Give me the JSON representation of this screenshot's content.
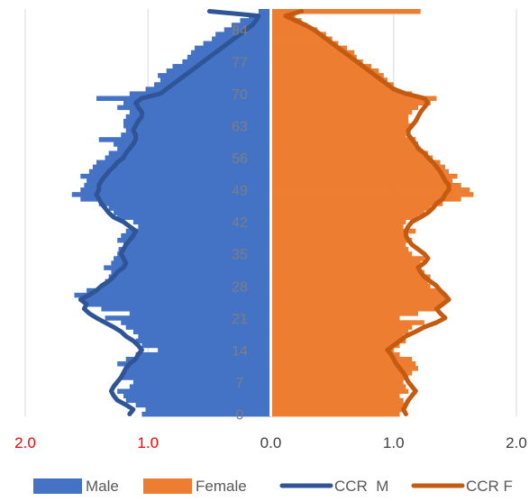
{
  "chart_data": {
    "type": "bar",
    "orientation": "horizontal",
    "subtype": "population-pyramid",
    "title": "",
    "xlabel": "",
    "ylabel": "",
    "xlim": [
      -2.0,
      2.0
    ],
    "x_tick_values": [
      -2.0,
      -1.0,
      0.0,
      1.0,
      2.0
    ],
    "x_tick_labels": [
      "2.0",
      "1.0",
      "0.0",
      "1.0",
      "2.0"
    ],
    "y_tick_labels": [
      "0",
      "7",
      "14",
      "21",
      "28",
      "35",
      "42",
      "49",
      "56",
      "63",
      "70",
      "77",
      "84"
    ],
    "grid": {
      "vertical": true,
      "horizontal": false
    },
    "legend_position": "bottom",
    "colors": {
      "male": "#4472C4",
      "female": "#ED7D31",
      "ccr_m": "#2F5597",
      "ccr_f": "#C55A11",
      "red_ticks": "#FF0000",
      "black_ticks": "#404040",
      "y_ticks": "#7F7F7F",
      "grid": "#D9D9D9"
    },
    "ages": [
      0,
      1,
      2,
      3,
      4,
      5,
      6,
      7,
      8,
      9,
      10,
      11,
      12,
      13,
      14,
      15,
      16,
      17,
      18,
      19,
      20,
      21,
      22,
      23,
      24,
      25,
      26,
      27,
      28,
      29,
      30,
      31,
      32,
      33,
      34,
      35,
      36,
      37,
      38,
      39,
      40,
      41,
      42,
      43,
      44,
      45,
      46,
      47,
      48,
      49,
      50,
      51,
      52,
      53,
      54,
      55,
      56,
      57,
      58,
      59,
      60,
      61,
      62,
      63,
      64,
      65,
      66,
      67,
      68,
      69,
      70,
      71,
      72,
      73,
      74,
      75,
      76,
      77,
      78,
      79,
      80,
      81,
      82,
      83,
      84,
      85,
      86,
      87,
      88
    ],
    "series": [
      {
        "name": "Male",
        "kind": "bar",
        "values": [
          1.05,
          1.02,
          1.1,
          1.18,
          1.2,
          1.25,
          1.15,
          1.12,
          1.22,
          1.2,
          1.18,
          1.25,
          1.18,
          1.1,
          0.92,
          1.05,
          1.1,
          1.08,
          1.12,
          1.18,
          1.22,
          1.35,
          1.15,
          1.38,
          1.5,
          1.55,
          1.6,
          1.5,
          1.38,
          1.35,
          1.32,
          1.3,
          1.36,
          1.3,
          1.28,
          1.25,
          1.24,
          1.2,
          1.25,
          1.22,
          1.18,
          1.08,
          1.12,
          1.25,
          1.28,
          1.32,
          1.4,
          1.55,
          1.62,
          1.55,
          1.52,
          1.5,
          1.55,
          1.48,
          1.45,
          1.42,
          1.35,
          1.32,
          1.25,
          1.28,
          1.4,
          1.22,
          1.18,
          1.2,
          1.2,
          1.18,
          1.15,
          1.25,
          1.2,
          1.42,
          1.15,
          1.02,
          0.95,
          0.9,
          0.92,
          0.85,
          0.8,
          0.72,
          0.68,
          0.65,
          0.62,
          0.55,
          0.48,
          0.45,
          0.38,
          0.32,
          0.25,
          0.18,
          0.1
        ]
      },
      {
        "name": "Female",
        "kind": "bar",
        "values": [
          1.05,
          1.08,
          1.1,
          1.08,
          1.05,
          1.12,
          1.1,
          1.08,
          1.12,
          1.15,
          1.2,
          1.18,
          1.15,
          1.05,
          1.0,
          1.05,
          1.1,
          1.08,
          1.12,
          1.15,
          1.25,
          1.05,
          1.2,
          1.35,
          1.4,
          1.45,
          1.42,
          1.38,
          1.3,
          1.28,
          1.3,
          1.25,
          1.2,
          1.22,
          1.25,
          1.15,
          1.12,
          1.1,
          1.15,
          1.12,
          1.18,
          1.08,
          1.1,
          1.2,
          1.25,
          1.3,
          1.4,
          1.55,
          1.65,
          1.62,
          1.55,
          1.48,
          1.52,
          1.45,
          1.42,
          1.38,
          1.32,
          1.28,
          1.22,
          1.2,
          1.18,
          1.1,
          1.12,
          1.15,
          1.12,
          1.12,
          1.15,
          1.2,
          1.3,
          1.35,
          1.15,
          1.02,
          1.0,
          0.95,
          0.92,
          0.88,
          0.82,
          0.75,
          0.7,
          0.68,
          0.62,
          0.55,
          0.5,
          0.45,
          0.38,
          0.3,
          0.25,
          0.2,
          1.22
        ]
      },
      {
        "name": "CCR  M",
        "kind": "line",
        "values": [
          1.15,
          1.12,
          1.18,
          1.25,
          1.28,
          1.3,
          1.28,
          1.25,
          1.22,
          1.2,
          1.18,
          1.15,
          1.1,
          1.08,
          1.05,
          1.08,
          1.12,
          1.18,
          1.22,
          1.28,
          1.35,
          1.42,
          1.48,
          1.52,
          1.5,
          1.55,
          1.48,
          1.42,
          1.38,
          1.32,
          1.28,
          1.25,
          1.2,
          1.18,
          1.2,
          1.22,
          1.2,
          1.18,
          1.15,
          1.12,
          1.1,
          1.15,
          1.2,
          1.28,
          1.32,
          1.35,
          1.38,
          1.4,
          1.42,
          1.4,
          1.4,
          1.38,
          1.35,
          1.32,
          1.28,
          1.25,
          1.2,
          1.18,
          1.15,
          1.12,
          1.1,
          1.1,
          1.12,
          1.1,
          1.08,
          1.05,
          1.05,
          1.08,
          1.1,
          1.05,
          0.9,
          0.85,
          0.8,
          0.75,
          0.7,
          0.65,
          0.6,
          0.55,
          0.5,
          0.45,
          0.4,
          0.35,
          0.3,
          0.25,
          0.2,
          0.15,
          0.12,
          0.1,
          0.5
        ]
      },
      {
        "name": "CCR F",
        "kind": "line",
        "values": [
          1.1,
          1.08,
          1.1,
          1.12,
          1.15,
          1.18,
          1.15,
          1.12,
          1.1,
          1.08,
          1.05,
          1.02,
          1.0,
          0.98,
          0.95,
          1.0,
          1.05,
          1.1,
          1.18,
          1.25,
          1.35,
          1.42,
          1.38,
          1.35,
          1.4,
          1.45,
          1.42,
          1.38,
          1.35,
          1.3,
          1.25,
          1.22,
          1.2,
          1.25,
          1.28,
          1.25,
          1.2,
          1.15,
          1.12,
          1.1,
          1.1,
          1.12,
          1.15,
          1.22,
          1.28,
          1.32,
          1.35,
          1.4,
          1.42,
          1.45,
          1.45,
          1.42,
          1.4,
          1.38,
          1.35,
          1.32,
          1.28,
          1.25,
          1.2,
          1.18,
          1.15,
          1.12,
          1.12,
          1.15,
          1.18,
          1.2,
          1.22,
          1.25,
          1.28,
          1.25,
          1.1,
          1.0,
          0.95,
          0.9,
          0.85,
          0.8,
          0.75,
          0.7,
          0.65,
          0.6,
          0.55,
          0.5,
          0.45,
          0.4,
          0.35,
          0.28,
          0.2,
          0.12,
          0.25
        ]
      }
    ]
  }
}
